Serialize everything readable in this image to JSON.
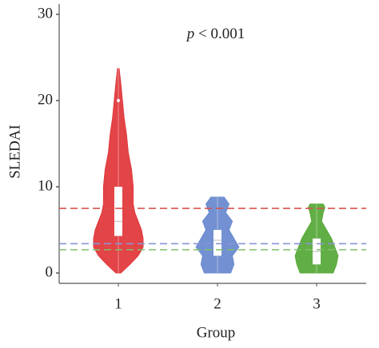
{
  "chart_data": {
    "type": "violin",
    "annotation": [
      "p",
      "< 0.001"
    ],
    "ylabel": "SLEDAI",
    "xlabel": "Group",
    "categories": [
      "1",
      "2",
      "3"
    ],
    "ylim": [
      -1.2,
      31.2
    ],
    "yticks": [
      0,
      10,
      20,
      30
    ],
    "violins": [
      {
        "color": "#e03a3e",
        "min": 0,
        "q1": 4.3,
        "median": 6,
        "q3": 10,
        "max": 23.7,
        "outliers": [
          20
        ],
        "density": {
          "y": [
            0,
            1,
            2,
            3,
            4,
            5,
            6,
            7,
            8,
            9,
            10,
            12,
            14,
            16,
            18,
            20,
            22,
            23.7
          ],
          "width": [
            3,
            14,
            24,
            30,
            30,
            28,
            24,
            20,
            18,
            18,
            18,
            16,
            12,
            10,
            7,
            5,
            3,
            1
          ]
        }
      },
      {
        "color": "#6b8bd0",
        "min": 0,
        "q1": 2,
        "median": 3.8,
        "q3": 5,
        "max": 8.8,
        "outliers": [],
        "density": {
          "y": [
            0,
            1,
            2,
            3,
            4,
            5,
            6,
            7,
            8,
            8.8
          ],
          "width": [
            16,
            20,
            18,
            26,
            20,
            14,
            18,
            10,
            14,
            8
          ]
        }
      },
      {
        "color": "#5aaa3c",
        "min": 0,
        "q1": 1,
        "median": 2.5,
        "q3": 4,
        "max": 8,
        "outliers": [],
        "density": {
          "y": [
            0,
            1,
            2,
            3,
            4,
            5,
            6,
            7,
            7.6,
            8
          ],
          "width": [
            20,
            24,
            26,
            22,
            18,
            12,
            6,
            8,
            10,
            8
          ]
        }
      }
    ],
    "reference_lines": [
      {
        "value": 7.5,
        "color": "#d9534f"
      },
      {
        "value": 3.4,
        "color": "#8a94d6"
      },
      {
        "value": 2.7,
        "color": "#7fc06a"
      }
    ]
  }
}
